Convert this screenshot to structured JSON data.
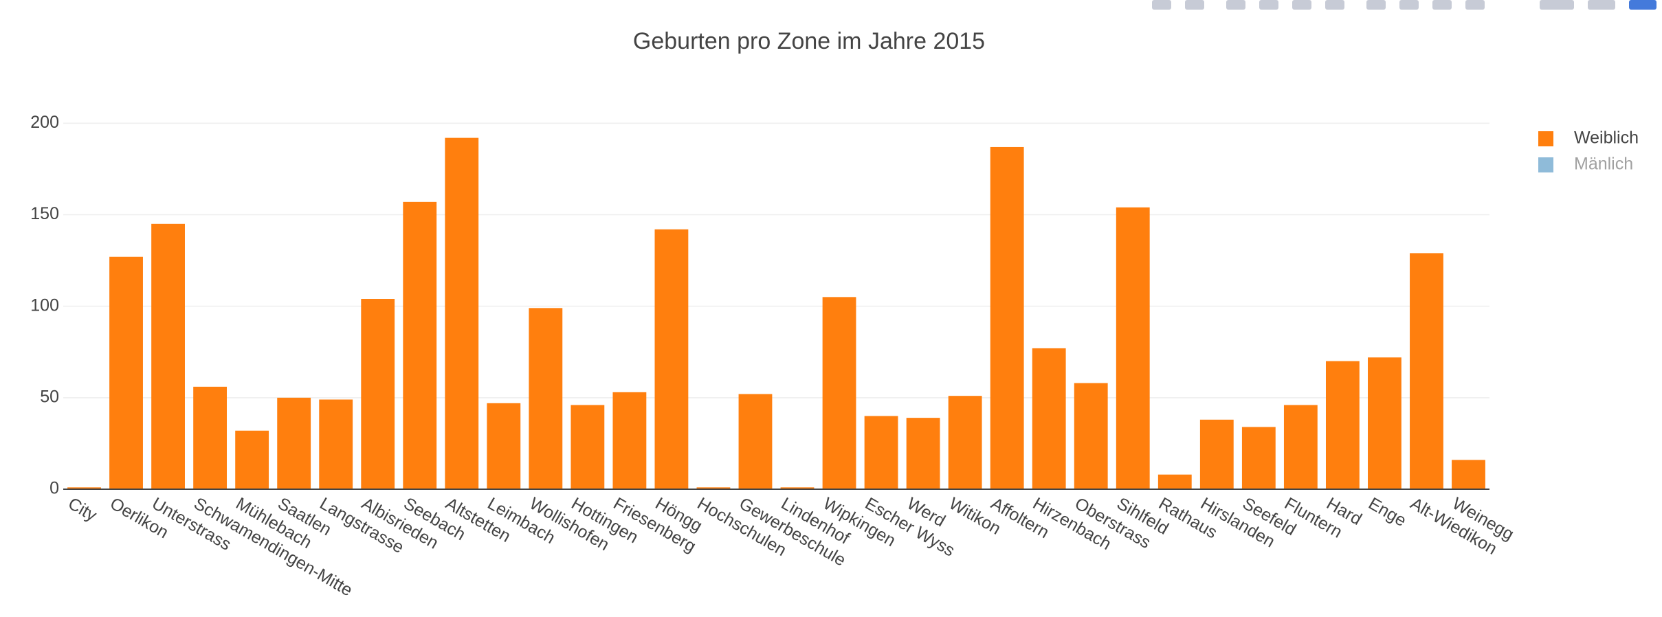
{
  "chart_data": {
    "type": "bar",
    "title": "Geburten pro Zone im Jahre 2015",
    "categories": [
      "City",
      "Oerlikon",
      "Unterstrass",
      "Schwamendingen-Mitte",
      "Mühlebach",
      "Saatlen",
      "Langstrasse",
      "Albisrieden",
      "Seebach",
      "Altstetten",
      "Leimbach",
      "Wollishofen",
      "Hottingen",
      "Friesenberg",
      "Höngg",
      "Hochschulen",
      "Gewerbeschule",
      "Lindenhof",
      "Wipkingen",
      "Escher Wyss",
      "Werd",
      "Witikon",
      "Affoltern",
      "Hirzenbach",
      "Oberstrass",
      "Sihlfeld",
      "Rathaus",
      "Hirslanden",
      "Seefeld",
      "Fluntern",
      "Hard",
      "Enge",
      "Alt-Wiedikon",
      "Weinegg"
    ],
    "series": [
      {
        "name": "Weiblich",
        "color": "#ff7f0e",
        "values": [
          1,
          127,
          145,
          56,
          32,
          50,
          49,
          104,
          157,
          192,
          47,
          99,
          46,
          53,
          142,
          1,
          52,
          1,
          105,
          40,
          39,
          51,
          187,
          77,
          58,
          154,
          8,
          38,
          34,
          46,
          70,
          72,
          129,
          16
        ]
      },
      {
        "name": "Mänlich",
        "color": "#1f77b4",
        "visible": false
      }
    ],
    "ylim": [
      0,
      202
    ],
    "yticks": [
      0,
      50,
      100,
      150,
      200
    ],
    "grid": true,
    "legend": "right"
  }
}
